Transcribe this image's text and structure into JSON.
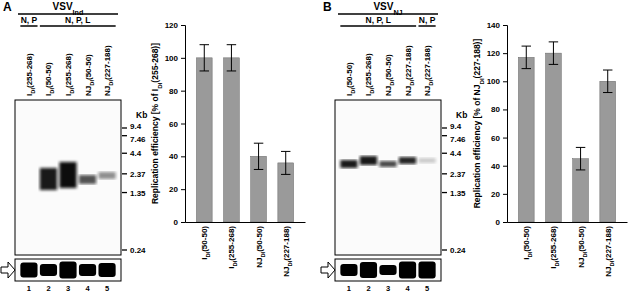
{
  "chart_data": [
    {
      "type": "bar",
      "ylabel": "Replication efficiency [% of IDI(255-268)]",
      "categories": [
        "IDI(50-50)",
        "IDI(255-268)",
        "NJDI(50-50)",
        "NJDI(227-188)"
      ],
      "values": [
        100,
        100,
        40,
        36
      ],
      "errors": [
        8,
        8,
        8,
        7
      ],
      "color": "#9a9a9a",
      "ylim": [
        0,
        120
      ],
      "yticks": [
        0,
        20,
        40,
        60,
        80,
        100,
        120
      ],
      "grid": false
    },
    {
      "type": "bar",
      "ylabel": "Replication efficiency [% of NJDI(227-188)]",
      "categories": [
        "IDI(50-50)",
        "IDI(255-268)",
        "NJDI(50-50)",
        "NJDI(227-188)"
      ],
      "values": [
        117,
        120,
        45,
        100
      ],
      "errors": [
        8,
        8,
        8,
        8
      ],
      "color": "#9a9a9a",
      "ylim": [
        0,
        140
      ],
      "yticks": [
        0,
        20,
        40,
        60,
        80,
        100,
        120,
        140
      ],
      "grid": false
    }
  ],
  "gels": [
    {
      "panel": "A",
      "virus": {
        "base": "VSV",
        "sub": "Ind"
      },
      "groups": [
        {
          "label": "N, P",
          "lanes": [
            1
          ]
        },
        {
          "label": "N, P, L",
          "lanes": [
            2,
            3,
            4,
            5
          ]
        }
      ],
      "lane_labels": [
        "IDI(255-268)",
        "IDI(50-50)",
        "IDI(255-268)",
        "NJDI(50-50)",
        "NJDI(227-188)"
      ],
      "lane_numbers": [
        1,
        2,
        3,
        4,
        5
      ],
      "size_unit": "Kb",
      "sizes": [
        9.4,
        7.46,
        4.4,
        2.37,
        1.35,
        0.24
      ]
    },
    {
      "panel": "B",
      "virus": {
        "base": "VSV",
        "sub": "NJ"
      },
      "groups": [
        {
          "label": "N, P, L",
          "lanes": [
            1,
            2,
            3,
            4
          ]
        },
        {
          "label": "N, P",
          "lanes": [
            5
          ]
        }
      ],
      "lane_labels": [
        "IDI(50-50)",
        "IDI(255-268)",
        "NJDI(50-50)",
        "NJDI(227-188)",
        "NJDI(227-188)"
      ],
      "lane_numbers": [
        1,
        2,
        3,
        4,
        5
      ],
      "size_unit": "Kb",
      "sizes": [
        9.4,
        7.46,
        4.4,
        2.37,
        1.35,
        0.24
      ]
    }
  ]
}
